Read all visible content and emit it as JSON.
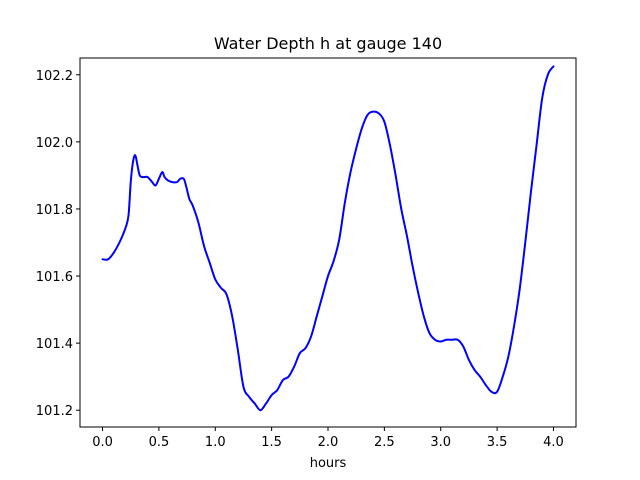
{
  "chart_data": {
    "type": "line",
    "title": "Water Depth h at gauge 140",
    "xlabel": "hours",
    "ylabel": "",
    "xlim": [
      -0.2,
      4.2
    ],
    "ylim": [
      101.15,
      102.25
    ],
    "xticks": [
      0.0,
      0.5,
      1.0,
      1.5,
      2.0,
      2.5,
      3.0,
      3.5,
      4.0
    ],
    "xtick_labels": [
      "0.0",
      "0.5",
      "1.0",
      "1.5",
      "2.0",
      "2.5",
      "3.0",
      "3.5",
      "4.0"
    ],
    "yticks": [
      101.2,
      101.4,
      101.6,
      101.8,
      102.0,
      102.2
    ],
    "ytick_labels": [
      "101.2",
      "101.4",
      "101.6",
      "101.8",
      "102.0",
      "102.2"
    ],
    "grid": false,
    "line_color": "#0000ff",
    "series": [
      {
        "x": [
          0.0,
          0.05,
          0.1,
          0.15,
          0.2,
          0.23,
          0.25,
          0.27,
          0.29,
          0.31,
          0.33,
          0.36,
          0.4,
          0.44,
          0.47,
          0.5,
          0.53,
          0.55,
          0.58,
          0.62,
          0.66,
          0.69,
          0.72,
          0.74,
          0.77,
          0.8,
          0.85,
          0.9,
          0.95,
          1.0,
          1.05,
          1.1,
          1.15,
          1.2,
          1.25,
          1.3,
          1.35,
          1.4,
          1.45,
          1.5,
          1.55,
          1.6,
          1.65,
          1.7,
          1.75,
          1.8,
          1.85,
          1.9,
          1.95,
          2.0,
          2.05,
          2.1,
          2.15,
          2.2,
          2.25,
          2.3,
          2.35,
          2.4,
          2.45,
          2.5,
          2.55,
          2.6,
          2.65,
          2.7,
          2.75,
          2.8,
          2.85,
          2.9,
          2.95,
          3.0,
          3.05,
          3.1,
          3.15,
          3.2,
          3.25,
          3.3,
          3.35,
          3.4,
          3.45,
          3.5,
          3.55,
          3.6,
          3.65,
          3.7,
          3.75,
          3.8,
          3.85,
          3.9,
          3.95,
          4.0
        ],
        "y": [
          101.65,
          101.65,
          101.67,
          101.7,
          101.74,
          101.78,
          101.88,
          101.94,
          101.96,
          101.93,
          101.9,
          101.895,
          101.895,
          101.88,
          101.87,
          101.89,
          101.91,
          101.895,
          101.885,
          101.88,
          101.88,
          101.89,
          101.89,
          101.87,
          101.83,
          101.81,
          101.76,
          101.69,
          101.64,
          101.59,
          101.565,
          101.545,
          101.48,
          101.38,
          101.27,
          101.24,
          101.22,
          101.2,
          101.22,
          101.245,
          101.26,
          101.29,
          101.3,
          101.33,
          101.37,
          101.385,
          101.42,
          101.48,
          101.54,
          101.6,
          101.645,
          101.71,
          101.82,
          101.91,
          101.98,
          102.04,
          102.08,
          102.09,
          102.085,
          102.06,
          101.99,
          101.9,
          101.8,
          101.72,
          101.63,
          101.55,
          101.48,
          101.43,
          101.41,
          101.405,
          101.41,
          101.41,
          101.41,
          101.39,
          101.35,
          101.32,
          101.3,
          101.275,
          101.255,
          101.255,
          101.3,
          101.36,
          101.45,
          101.56,
          101.7,
          101.85,
          101.99,
          102.13,
          102.2,
          102.225
        ]
      }
    ]
  }
}
